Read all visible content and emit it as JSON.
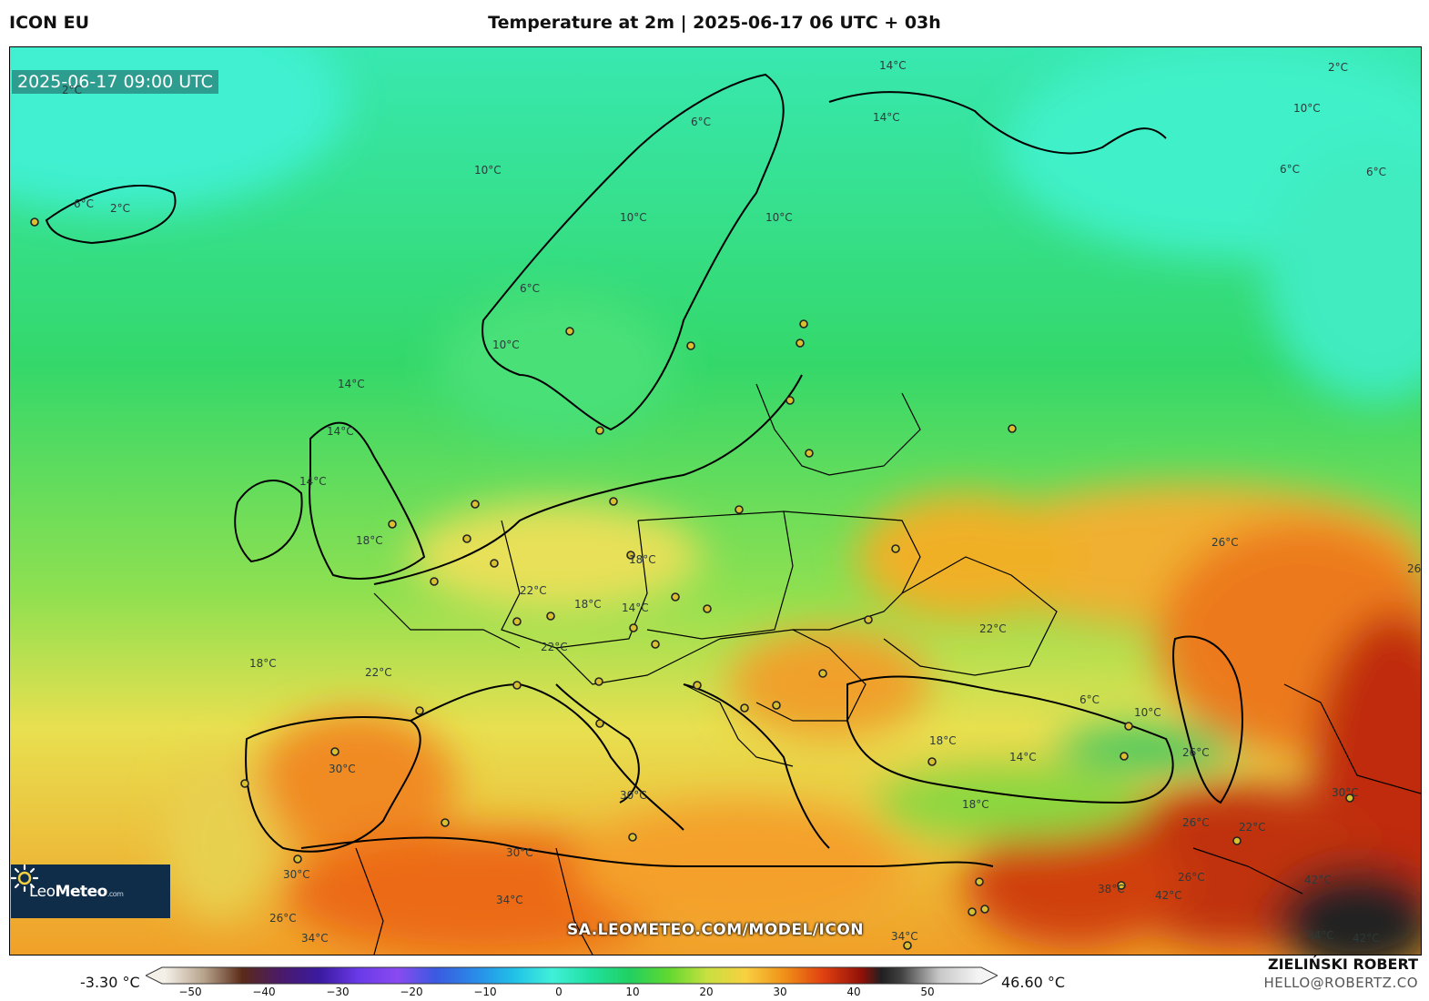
{
  "header": {
    "model": "ICON EU",
    "title": "Temperature at 2m | 2025-06-17 06 UTC + 03h"
  },
  "map": {
    "valid_time": "2025-06-17 09:00 UTC",
    "logo_text_light": "Leo",
    "logo_text_bold": "Meteo",
    "logo_suffix": ".com",
    "watermark": "SA.LEOMETEO.COM/MODEL/ICON",
    "contour_labels": [
      {
        "text": "14°C"
      },
      {
        "text": "14°C"
      },
      {
        "text": "2°C"
      },
      {
        "text": "2°C"
      },
      {
        "text": "10°C"
      },
      {
        "text": "6°C"
      },
      {
        "text": "6°C"
      },
      {
        "text": "10°C"
      },
      {
        "text": "6°C"
      },
      {
        "text": "2°C"
      },
      {
        "text": "6°C"
      },
      {
        "text": "10°C"
      },
      {
        "text": "10°C"
      },
      {
        "text": "6°C"
      },
      {
        "text": "10°C"
      },
      {
        "text": "14°C"
      },
      {
        "text": "14°C"
      },
      {
        "text": "14°C"
      },
      {
        "text": "18°C"
      },
      {
        "text": "18°C"
      },
      {
        "text": "22°C"
      },
      {
        "text": "18°C"
      },
      {
        "text": "14°C"
      },
      {
        "text": "22°C"
      },
      {
        "text": "18°C"
      },
      {
        "text": "22°C"
      },
      {
        "text": "26°C"
      },
      {
        "text": "26°C"
      },
      {
        "text": "30°C"
      },
      {
        "text": "30°C"
      },
      {
        "text": "30°C"
      },
      {
        "text": "30°C"
      },
      {
        "text": "26°C"
      },
      {
        "text": "34°C"
      },
      {
        "text": "34°C"
      },
      {
        "text": "22°C"
      },
      {
        "text": "6°C"
      },
      {
        "text": "10°C"
      },
      {
        "text": "18°C"
      },
      {
        "text": "14°C"
      },
      {
        "text": "18°C"
      },
      {
        "text": "26°C"
      },
      {
        "text": "26°C"
      },
      {
        "text": "30°C"
      },
      {
        "text": "38°C"
      },
      {
        "text": "42°C"
      },
      {
        "text": "34°C"
      },
      {
        "text": "42°C"
      },
      {
        "text": "42°C"
      },
      {
        "text": "34°C"
      },
      {
        "text": "26°C"
      },
      {
        "text": "22°C"
      }
    ]
  },
  "colorbar": {
    "min_label": "-3.30 °C",
    "max_label": "46.60 °C",
    "ticks": [
      "−50",
      "−40",
      "−30",
      "−20",
      "−10",
      "0",
      "10",
      "20",
      "30",
      "40",
      "50"
    ],
    "stops": [
      {
        "t": -50,
        "color": "#f4f0e8"
      },
      {
        "t": -45,
        "color": "#b8a48c"
      },
      {
        "t": -40,
        "color": "#5a2a18"
      },
      {
        "t": -35,
        "color": "#4a1a6a"
      },
      {
        "t": -30,
        "color": "#3a1aa0"
      },
      {
        "t": -25,
        "color": "#6a3ae8"
      },
      {
        "t": -20,
        "color": "#8a4af0"
      },
      {
        "t": -15,
        "color": "#3a5ae0"
      },
      {
        "t": -10,
        "color": "#2a8ae8"
      },
      {
        "t": -5,
        "color": "#20c0e8"
      },
      {
        "t": 0,
        "color": "#40f0d8"
      },
      {
        "t": 5,
        "color": "#20e0a0"
      },
      {
        "t": 10,
        "color": "#20d060"
      },
      {
        "t": 15,
        "color": "#60d830"
      },
      {
        "t": 20,
        "color": "#c8e040"
      },
      {
        "t": 25,
        "color": "#f8d040"
      },
      {
        "t": 30,
        "color": "#f09018"
      },
      {
        "t": 35,
        "color": "#e04010"
      },
      {
        "t": 40,
        "color": "#901008"
      },
      {
        "t": 42.5,
        "color": "#202020"
      },
      {
        "t": 45,
        "color": "#404040"
      },
      {
        "t": 50,
        "color": "#c8c8c8"
      },
      {
        "t": 55,
        "color": "#f4f4f4"
      }
    ]
  },
  "credits": {
    "author": "ZIELIŃSKI ROBERT",
    "contact": "HELLO@ROBERTZ.CO"
  }
}
